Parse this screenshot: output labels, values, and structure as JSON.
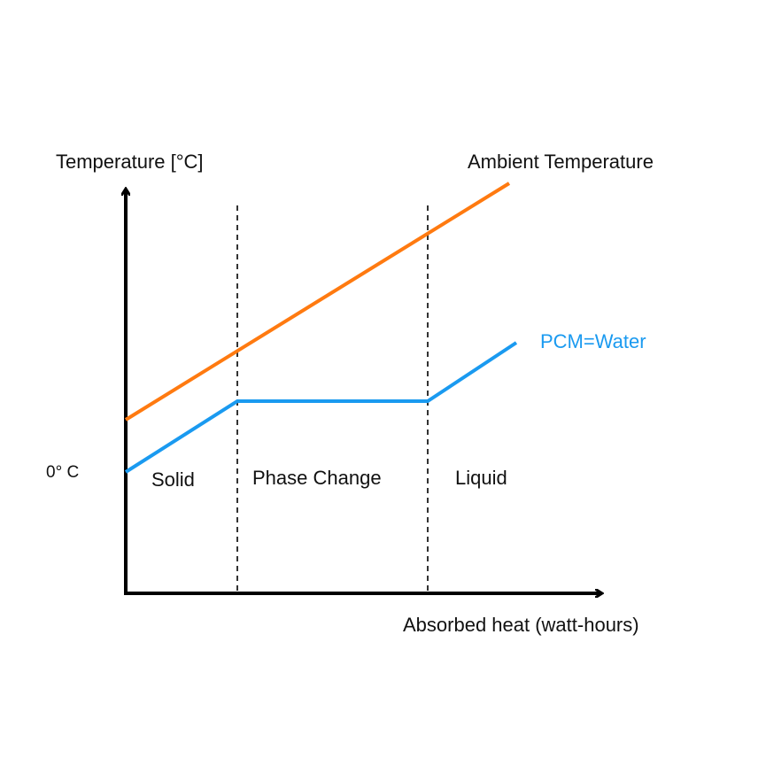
{
  "axes": {
    "y_label": "Temperature [°C]",
    "x_label": "Absorbed heat (watt-hours)",
    "zero_label": "0° C"
  },
  "lines": [
    {
      "label": "Ambient Temperature"
    },
    {
      "label": "PCM=Water"
    }
  ],
  "regions": [
    "Solid",
    "Phase Change",
    "Liquid"
  ]
}
